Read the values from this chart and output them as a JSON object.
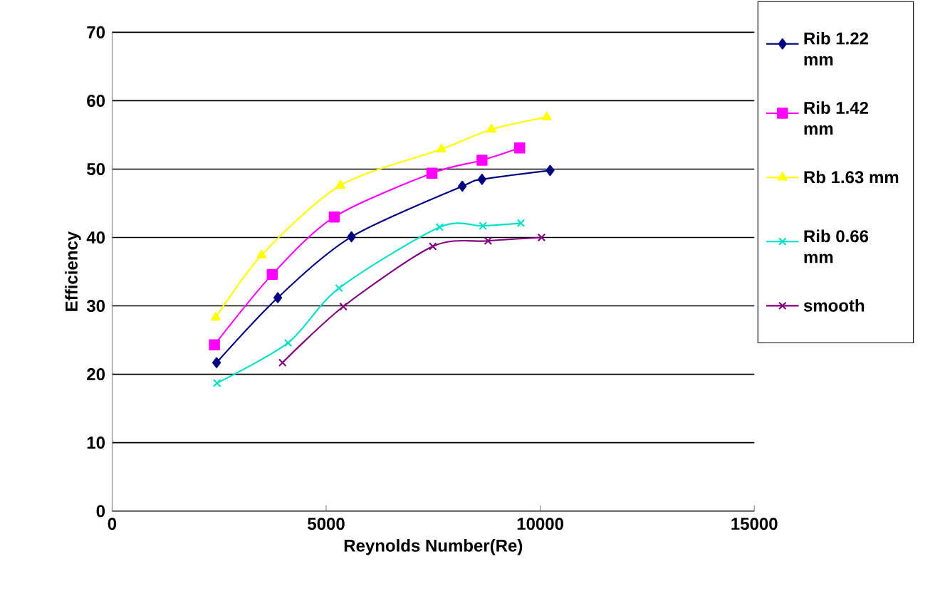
{
  "chart_data": {
    "type": "line",
    "xlabel": "Reynolds Number(Re)",
    "ylabel": "Efficiency",
    "xlim": [
      0,
      15000
    ],
    "xticks": [
      0,
      5000,
      10000,
      15000
    ],
    "ylim": [
      0,
      70
    ],
    "yticks": [
      0,
      10,
      20,
      30,
      40,
      50,
      60,
      70
    ],
    "grid": "y",
    "legend": "right",
    "series": [
      {
        "name": "Rib 1.22 mm",
        "color": "#000080",
        "marker": "diamond",
        "x": [
          2440,
          3870,
          5590,
          8180,
          8640,
          10230
        ],
        "values": [
          21.7,
          31.2,
          40.1,
          47.5,
          48.5,
          49.8
        ]
      },
      {
        "name": "Rib 1.42 mm",
        "color": "#ff00ff",
        "marker": "square",
        "x": [
          2390,
          3740,
          5190,
          7470,
          8640,
          9520
        ],
        "values": [
          24.3,
          34.6,
          43.0,
          49.4,
          51.3,
          53.1
        ]
      },
      {
        "name": "Rb 1.63 mm",
        "color": "#ffff00",
        "marker": "triangle",
        "x": [
          2420,
          3490,
          5330,
          7690,
          8860,
          10150
        ],
        "values": [
          28.3,
          37.4,
          47.6,
          52.9,
          55.8,
          57.6
        ]
      },
      {
        "name": "Rib 0.66 mm",
        "color": "#00e0c8",
        "marker": "cross",
        "x": [
          2450,
          4110,
          5300,
          7650,
          8660,
          9550
        ],
        "values": [
          18.7,
          24.6,
          32.6,
          41.5,
          41.7,
          42.1
        ]
      },
      {
        "name": "smooth",
        "color": "#800080",
        "marker": "cross",
        "x": [
          3980,
          5400,
          7490,
          8780,
          10030
        ],
        "values": [
          21.7,
          29.9,
          38.7,
          39.5,
          40.0
        ]
      }
    ]
  }
}
